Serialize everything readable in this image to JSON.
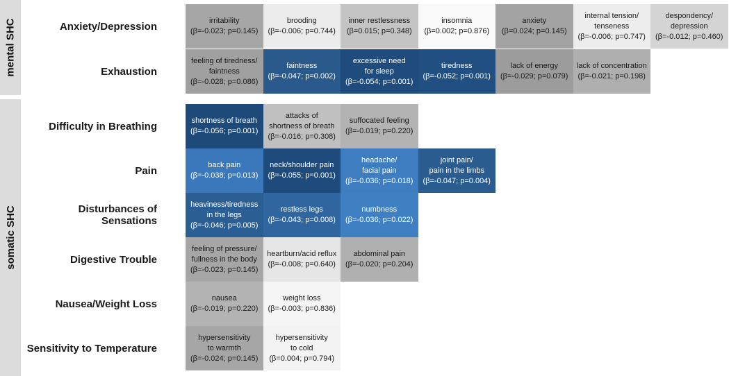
{
  "colors": {
    "positive_strong": "#f7f7f7",
    "group_band": "#dcdcdc",
    "significant_blue_dark": "#1f4e80",
    "significant_blue_light": "#3b7bbf"
  },
  "chart_data": {
    "type": "heatmap",
    "title": "",
    "groups": [
      {
        "name": "mental SHC",
        "rows": [
          "Anxiety/Depression",
          "Exhaustion"
        ]
      },
      {
        "name": "somatic SHC",
        "rows": [
          "Difficulty in Breathing",
          "Pain",
          "Disturbances of Sensations",
          "Digestive Trouble",
          "Nausea/Weight Loss",
          "Sensitivity to Temperature"
        ]
      }
    ],
    "rows": [
      {
        "label": "Anxiety/Depression",
        "cells": [
          {
            "name": "irritability",
            "stat": "(β=-0.023; p=0.145)",
            "beta": -0.023,
            "p": 0.145,
            "color": "#a6a6a6"
          },
          {
            "name": "brooding",
            "stat": "(β=-0.006; p=0.744)",
            "beta": -0.006,
            "p": 0.744,
            "color": "#ececec"
          },
          {
            "name": "inner restlessness",
            "stat": "(β=0.015; p=0.348)",
            "beta": 0.015,
            "p": 0.348,
            "color": "#c4c4c4"
          },
          {
            "name": "insomnia",
            "stat": "(β=0.002; p=0.876)",
            "beta": 0.002,
            "p": 0.876,
            "color": "#f9f9f9"
          },
          {
            "name": "anxiety",
            "stat": "(β=0.024; p=0.145)",
            "beta": 0.024,
            "p": 0.145,
            "color": "#a3a3a3"
          },
          {
            "name": "internal tension/\ntenseness",
            "stat": "(β=-0.006; p=0.747)",
            "beta": -0.006,
            "p": 0.747,
            "color": "#ededed"
          },
          {
            "name": "despondency/\ndepression",
            "stat": "(β=-0.012; p=0.460)",
            "beta": -0.012,
            "p": 0.46,
            "color": "#d4d4d4"
          }
        ]
      },
      {
        "label": "Exhaustion",
        "cells": [
          {
            "name": "feeling of tiredness/\nfaintness",
            "stat": "(β=-0.028; p=0.086)",
            "beta": -0.028,
            "p": 0.086,
            "color": "#a0a0a0"
          },
          {
            "name": "faintness",
            "stat": "(β=-0.047; p=0.002)",
            "beta": -0.047,
            "p": 0.002,
            "color": "#2a5a8c"
          },
          {
            "name": "excessive need\nfor sleep",
            "stat": "(β=-0.054; p=0.001)",
            "beta": -0.054,
            "p": 0.001,
            "color": "#1f4c7d"
          },
          {
            "name": "tiredness",
            "stat": "(β=-0.052; p=0.001)",
            "beta": -0.052,
            "p": 0.001,
            "color": "#224f82"
          },
          {
            "name": "lack of energy",
            "stat": "(β=-0.029; p=0.079)",
            "beta": -0.029,
            "p": 0.079,
            "color": "#9c9c9c"
          },
          {
            "name": "lack of concentration",
            "stat": "(β=-0.021; p=0.198)",
            "beta": -0.021,
            "p": 0.198,
            "color": "#afafaf"
          }
        ]
      },
      {
        "label": "Difficulty in Breathing",
        "cells": [
          {
            "name": "shortness of breath",
            "stat": "(β=-0.056; p=0.001)",
            "beta": -0.056,
            "p": 0.001,
            "color": "#1e4a7a"
          },
          {
            "name": "attacks of\nshortness of breath",
            "stat": "(β=-0.016; p=0.308)",
            "beta": -0.016,
            "p": 0.308,
            "color": "#c0c0c0"
          },
          {
            "name": "suffocated feeling",
            "stat": "(β=-0.019; p=0.220)",
            "beta": -0.019,
            "p": 0.22,
            "color": "#b3b3b3"
          }
        ]
      },
      {
        "label": "Pain",
        "cells": [
          {
            "name": "back pain",
            "stat": "(β=-0.038; p=0.013)",
            "beta": -0.038,
            "p": 0.013,
            "color": "#3a78bb"
          },
          {
            "name": "neck/shoulder pain",
            "stat": "(β=-0.055; p=0.001)",
            "beta": -0.055,
            "p": 0.001,
            "color": "#1f4b7c"
          },
          {
            "name": "headache/\nfacial pain",
            "stat": "(β=-0.036; p=0.018)",
            "beta": -0.036,
            "p": 0.018,
            "color": "#3d7dc0"
          },
          {
            "name": "joint pain/\npain in the limbs",
            "stat": "(β=-0.047; p=0.004)",
            "beta": -0.047,
            "p": 0.004,
            "color": "#2a5c90"
          }
        ]
      },
      {
        "label": "Disturbances of Sensations",
        "cells": [
          {
            "name": "heaviness/tiredness\nin the legs",
            "stat": "(β=-0.046; p=0.005)",
            "beta": -0.046,
            "p": 0.005,
            "color": "#2b5e93"
          },
          {
            "name": "restless legs",
            "stat": "(β=-0.043; p=0.008)",
            "beta": -0.043,
            "p": 0.008,
            "color": "#2f66a0"
          },
          {
            "name": "numbness",
            "stat": "(β=-0.036; p=0.022)",
            "beta": -0.036,
            "p": 0.022,
            "color": "#3f80c3"
          }
        ]
      },
      {
        "label": "Digestive Trouble",
        "cells": [
          {
            "name": "feeling of pressure/\nfullness in the body",
            "stat": "(β=-0.023; p=0.145)",
            "beta": -0.023,
            "p": 0.145,
            "color": "#a6a6a6"
          },
          {
            "name": "heartburn/acid reflux",
            "stat": "(β=-0.008; p=0.640)",
            "beta": -0.008,
            "p": 0.64,
            "color": "#e6e6e6"
          },
          {
            "name": "abdominal pain",
            "stat": "(β=-0.020; p=0.204)",
            "beta": -0.02,
            "p": 0.204,
            "color": "#b0b0b0"
          }
        ]
      },
      {
        "label": "Nausea/Weight Loss",
        "cells": [
          {
            "name": "nausea",
            "stat": "(β=-0.019; p=0.220)",
            "beta": -0.019,
            "p": 0.22,
            "color": "#b3b3b3"
          },
          {
            "name": "weight loss",
            "stat": "(β=-0.003; p=0.836)",
            "beta": -0.003,
            "p": 0.836,
            "color": "#f5f5f5"
          }
        ]
      },
      {
        "label": "Sensitivity to Temperature",
        "cells": [
          {
            "name": "hypersensitivity\nto warmth",
            "stat": "(β=-0.024; p=0.145)",
            "beta": -0.024,
            "p": 0.145,
            "color": "#a6a6a6"
          },
          {
            "name": "hypersensitivity\nto cold",
            "stat": "(β=0.004; p=0.794)",
            "beta": 0.004,
            "p": 0.794,
            "color": "#f3f3f3"
          }
        ]
      }
    ]
  }
}
